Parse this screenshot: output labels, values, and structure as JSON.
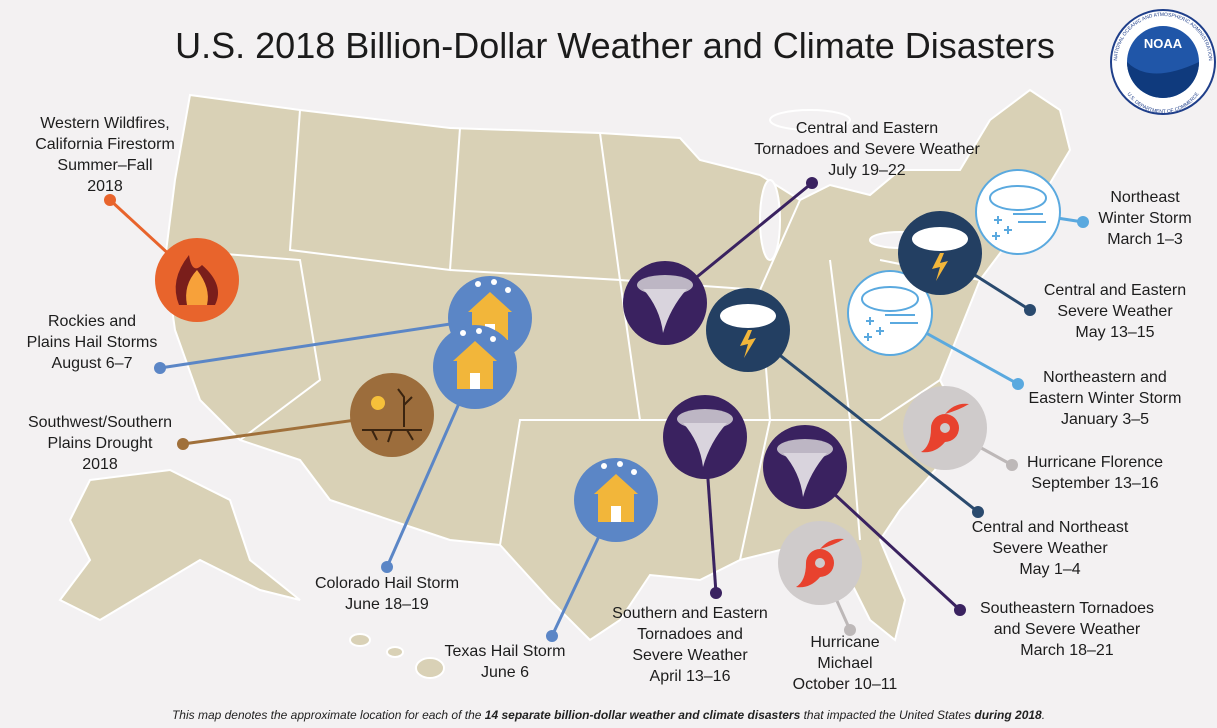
{
  "title": "U.S. 2018 Billion-Dollar Weather and Climate Disasters",
  "logo": {
    "text": "NOAA",
    "ring_top": "NATIONAL OCEANIC AND ATMOSPHERIC ADMINISTRATION",
    "ring_bottom": "U.S. DEPARTMENT OF COMMERCE"
  },
  "events": [
    {
      "lines": [
        "Western Wildfires,",
        "California Firestorm",
        "Summer–Fall",
        "2018"
      ]
    },
    {
      "lines": [
        "Rockies and",
        "Plains Hail Storms",
        "August 6–7"
      ]
    },
    {
      "lines": [
        "Southwest/Southern",
        "Plains Drought",
        "2018"
      ]
    },
    {
      "lines": [
        "Colorado Hail Storm",
        "June 18–19"
      ]
    },
    {
      "lines": [
        "Texas Hail Storm",
        "June 6"
      ]
    },
    {
      "lines": [
        "Southern and Eastern",
        "Tornadoes and",
        "Severe Weather",
        "April 13–16"
      ]
    },
    {
      "lines": [
        "Hurricane",
        "Michael",
        "October 10–11"
      ]
    },
    {
      "lines": [
        "Southeastern Tornadoes",
        "and Severe Weather",
        "March 18–21"
      ]
    },
    {
      "lines": [
        "Central and Northeast",
        "Severe Weather",
        "May 1–4"
      ]
    },
    {
      "lines": [
        "Hurricane Florence",
        "September 13–16"
      ]
    },
    {
      "lines": [
        "Northeastern and",
        "Eastern Winter Storm",
        "January 3–5"
      ]
    },
    {
      "lines": [
        "Central and Eastern",
        "Severe Weather",
        "May 13–15"
      ]
    },
    {
      "lines": [
        "Northeast",
        "Winter Storm",
        "March 1–3"
      ]
    },
    {
      "lines": [
        "Central and Eastern",
        "Tornadoes and Severe Weather",
        "July 19–22"
      ]
    }
  ],
  "footnote": {
    "parts": [
      "This map denotes the approximate location for each of the ",
      "14 separate billion-dollar weather and climate disasters",
      " that impacted the United States ",
      "during 2018",
      "."
    ]
  }
}
